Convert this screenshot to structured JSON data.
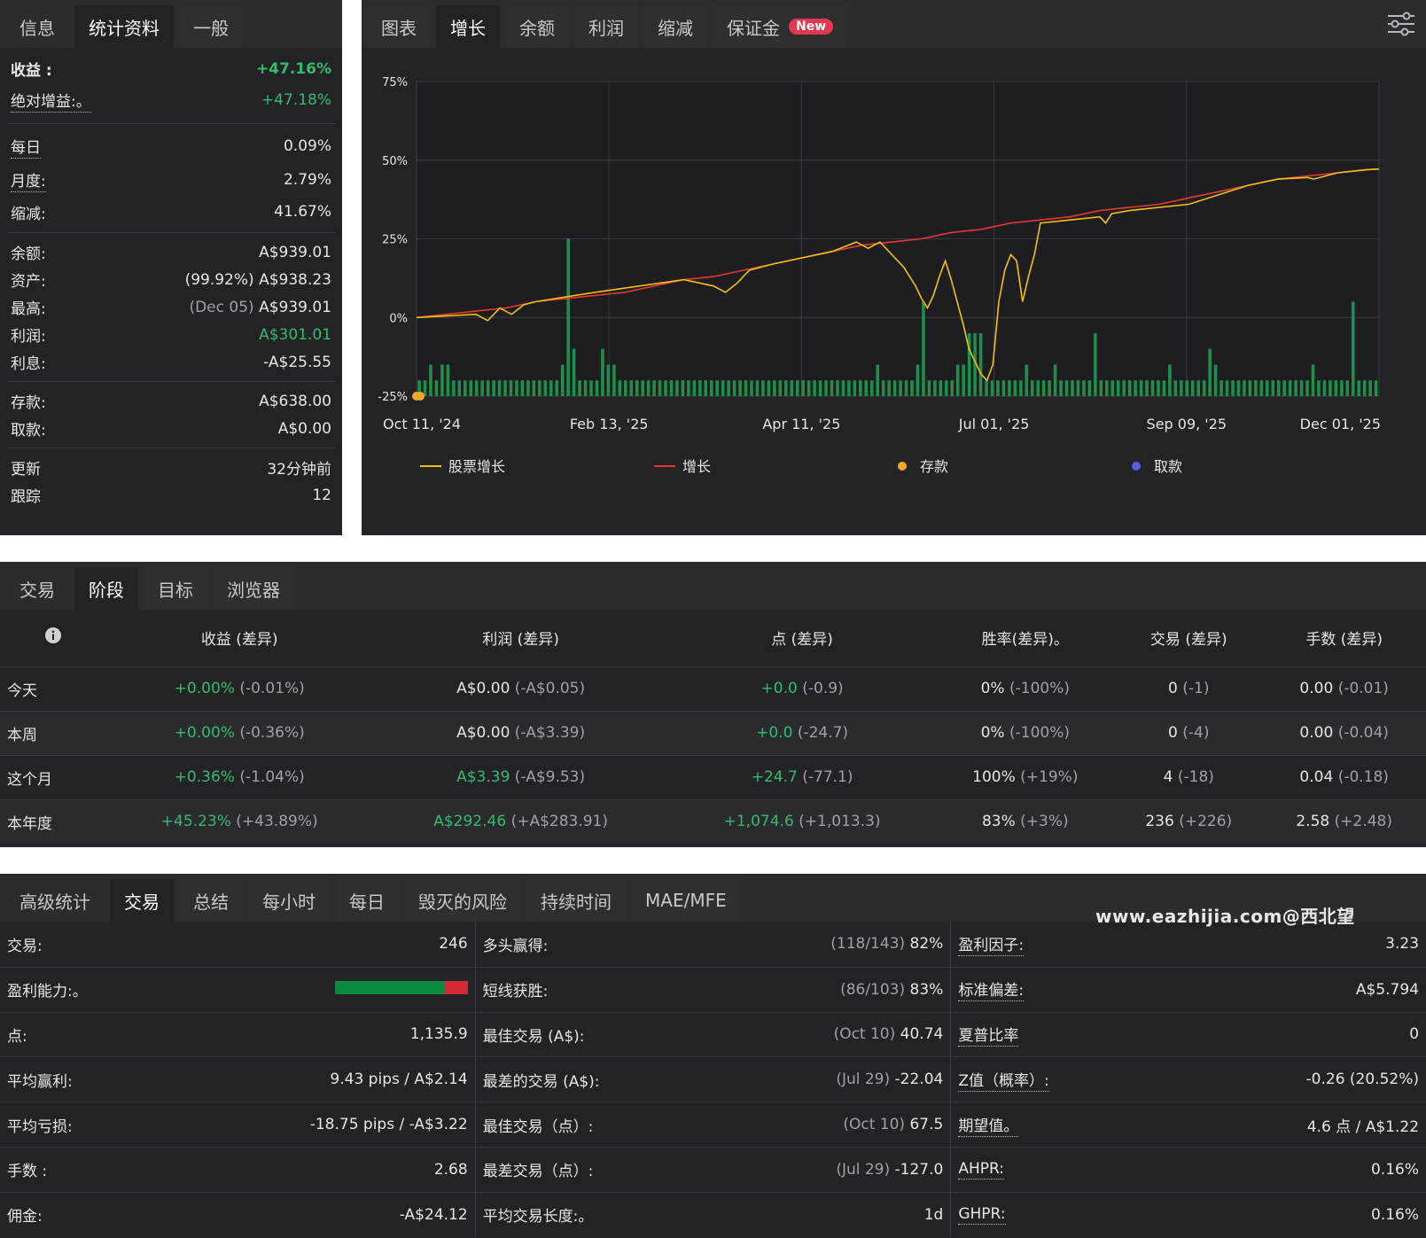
{
  "stats_panel": {
    "tabs": [
      "信息",
      "统计资料",
      "一般"
    ],
    "gain": {
      "label": "收益 :",
      "value": "+47.16%"
    },
    "abs_gain": {
      "label": "绝对增益:。",
      "value": "+47.18%"
    },
    "daily": {
      "label": "每日",
      "value": "0.09%"
    },
    "monthly": {
      "label": "月度:",
      "value": "2.79%"
    },
    "drawdown": {
      "label": "缩减:",
      "value": "41.67%"
    },
    "balance": {
      "label": "余额:",
      "value": "A$939.01"
    },
    "equity": {
      "label": "资产:",
      "note": "(99.92%)",
      "value": "A$938.23"
    },
    "highest": {
      "label": "最高:",
      "note": "(Dec 05)",
      "value": "A$939.01"
    },
    "profit": {
      "label": "利润:",
      "value": "A$301.01"
    },
    "interest": {
      "label": "利息:",
      "value": "-A$25.55"
    },
    "deposits": {
      "label": "存款:",
      "value": "A$638.00"
    },
    "withdrawals": {
      "label": "取款:",
      "value": "A$0.00"
    },
    "updated": {
      "label": "更新",
      "value": "32分钟前"
    },
    "tracking": {
      "label": "跟踪",
      "value": "12"
    }
  },
  "chart_panel": {
    "tabs": [
      "图表",
      "增长",
      "余额",
      "利润",
      "缩减",
      "保证金"
    ],
    "new_badge": "New",
    "settings_icon": "sliders-icon"
  },
  "chart_data": {
    "type": "line",
    "x_tick_labels": [
      "Oct 11, '24",
      "Feb 13, '25",
      "Apr 11, '25",
      "Jul 01, '25",
      "Sep 09, '25",
      "Dec 01, '25"
    ],
    "y_tick_labels": [
      "75%",
      "50%",
      "25%",
      "0%",
      "-25%"
    ],
    "ylim": [
      -25,
      75
    ],
    "colors": {
      "equity_growth": "#f2c10e",
      "growth": "#e8382f",
      "deposit": "#f5a623",
      "withdrawal": "#5b5ce6",
      "bars": "#1f8f4a"
    },
    "legend": [
      {
        "name": "股票增长",
        "kind": "line",
        "color": "#f2c10e"
      },
      {
        "name": "增长",
        "kind": "line",
        "color": "#e8382f"
      },
      {
        "name": "存款",
        "kind": "dot",
        "color": "#f5a623"
      },
      {
        "name": "取款",
        "kind": "dot",
        "color": "#5b5ce6"
      }
    ],
    "series": [
      {
        "name": "增长",
        "points": [
          [
            0,
            0
          ],
          [
            5,
            1
          ],
          [
            10,
            2
          ],
          [
            15,
            3
          ],
          [
            20,
            5
          ],
          [
            25,
            6
          ],
          [
            30,
            7
          ],
          [
            35,
            8
          ],
          [
            40,
            10
          ],
          [
            45,
            12
          ],
          [
            50,
            13
          ],
          [
            55,
            15
          ],
          [
            60,
            17
          ],
          [
            65,
            19
          ],
          [
            70,
            21
          ],
          [
            75,
            23
          ],
          [
            80,
            24
          ],
          [
            85,
            25
          ],
          [
            90,
            27
          ],
          [
            95,
            28
          ],
          [
            100,
            30
          ],
          [
            105,
            31
          ],
          [
            110,
            32
          ],
          [
            115,
            34
          ],
          [
            120,
            35
          ],
          [
            125,
            36
          ],
          [
            130,
            38
          ],
          [
            135,
            40
          ],
          [
            140,
            42
          ],
          [
            145,
            44
          ],
          [
            150,
            45
          ],
          [
            155,
            46
          ],
          [
            160,
            47
          ],
          [
            162,
            47.2
          ]
        ]
      },
      {
        "name": "股票增长",
        "points": [
          [
            0,
            0
          ],
          [
            10,
            1
          ],
          [
            12,
            -1
          ],
          [
            14,
            3
          ],
          [
            16,
            1
          ],
          [
            18,
            4
          ],
          [
            20,
            5
          ],
          [
            30,
            8
          ],
          [
            45,
            12
          ],
          [
            50,
            10
          ],
          [
            52,
            8
          ],
          [
            54,
            11
          ],
          [
            56,
            15
          ],
          [
            60,
            17
          ],
          [
            70,
            21
          ],
          [
            74,
            24
          ],
          [
            76,
            22
          ],
          [
            78,
            24
          ],
          [
            80,
            20
          ],
          [
            82,
            16
          ],
          [
            84,
            10
          ],
          [
            85,
            6
          ],
          [
            86,
            3
          ],
          [
            87,
            7
          ],
          [
            88,
            13
          ],
          [
            89,
            18
          ],
          [
            90,
            12
          ],
          [
            91,
            5
          ],
          [
            92,
            -2
          ],
          [
            93,
            -10
          ],
          [
            94,
            -14
          ],
          [
            95,
            -18
          ],
          [
            96,
            -20
          ],
          [
            97,
            -15
          ],
          [
            98,
            5
          ],
          [
            99,
            15
          ],
          [
            100,
            20
          ],
          [
            101,
            18
          ],
          [
            102,
            5
          ],
          [
            103,
            13
          ],
          [
            104,
            20
          ],
          [
            105,
            30
          ],
          [
            110,
            31
          ],
          [
            115,
            32
          ],
          [
            116,
            30
          ],
          [
            117,
            33
          ],
          [
            120,
            34
          ],
          [
            130,
            36
          ],
          [
            140,
            42
          ],
          [
            145,
            44
          ],
          [
            150,
            44.5
          ],
          [
            151,
            44
          ],
          [
            155,
            46
          ],
          [
            160,
            47
          ],
          [
            162,
            47.2
          ]
        ]
      }
    ],
    "bar_values": [
      5,
      5,
      10,
      5,
      10,
      10,
      5,
      5,
      5,
      5,
      5,
      5,
      5,
      5,
      5,
      5,
      5,
      5,
      5,
      5,
      5,
      5,
      5,
      5,
      5,
      10,
      50,
      15,
      5,
      5,
      5,
      5,
      15,
      10,
      10,
      5,
      5,
      5,
      5,
      5,
      5,
      5,
      5,
      5,
      5,
      5,
      5,
      5,
      5,
      5,
      5,
      5,
      5,
      5,
      5,
      5,
      5,
      5,
      5,
      5,
      5,
      5,
      5,
      5,
      5,
      5,
      5,
      5,
      5,
      5,
      5,
      5,
      5,
      5,
      5,
      5,
      5,
      5,
      5,
      5,
      10,
      5,
      5,
      5,
      5,
      5,
      5,
      10,
      30,
      5,
      5,
      5,
      5,
      5,
      10,
      10,
      20,
      20,
      20,
      5,
      5,
      5,
      5,
      5,
      5,
      5,
      10,
      5,
      5,
      5,
      5,
      10,
      5,
      5,
      5,
      5,
      5,
      5,
      20,
      5,
      5,
      5,
      5,
      5,
      5,
      5,
      5,
      5,
      5,
      5,
      5,
      10,
      5,
      5,
      5,
      5,
      5,
      5,
      15,
      10,
      5,
      5,
      5,
      5,
      5,
      5,
      5,
      5,
      5,
      5,
      5,
      5,
      5,
      5,
      5,
      5,
      10,
      5,
      5,
      5,
      5,
      5,
      5,
      30,
      5,
      5,
      5,
      5
    ],
    "deposit_x": [
      0,
      0.6
    ]
  },
  "period_panel": {
    "tabs": [
      "交易",
      "阶段",
      "目标",
      "浏览器"
    ],
    "headers": [
      "收益 (差异)",
      "利润 (差异)",
      "点 (差异)",
      "胜率(差异)。",
      "交易 (差异)",
      "手数 (差异)"
    ],
    "rows": [
      {
        "label": "今天",
        "cells": [
          [
            "+0.00%",
            "(-0.01%)"
          ],
          [
            "A$0.00",
            "(-A$0.05)"
          ],
          [
            "+0.0",
            "(-0.9)"
          ],
          [
            "0%",
            "(-100%)"
          ],
          [
            "0",
            "(-1)"
          ],
          [
            "0.00",
            "(-0.01)"
          ]
        ]
      },
      {
        "label": "本周",
        "cells": [
          [
            "+0.00%",
            "(-0.36%)"
          ],
          [
            "A$0.00",
            "(-A$3.39)"
          ],
          [
            "+0.0",
            "(-24.7)"
          ],
          [
            "0%",
            "(-100%)"
          ],
          [
            "0",
            "(-4)"
          ],
          [
            "0.00",
            "(-0.04)"
          ]
        ]
      },
      {
        "label": "这个月",
        "cells": [
          [
            "+0.36%",
            "(-1.04%)"
          ],
          [
            "A$3.39",
            "(-A$9.53)"
          ],
          [
            "+24.7",
            "(-77.1)"
          ],
          [
            "100%",
            "(+19%)"
          ],
          [
            "4",
            "(-18)"
          ],
          [
            "0.04",
            "(-0.18)"
          ]
        ]
      },
      {
        "label": "本年度",
        "cells": [
          [
            "+45.23%",
            "(+43.89%)"
          ],
          [
            "A$292.46",
            "(+A$283.91)"
          ],
          [
            "+1,074.6",
            "(+1,013.3)"
          ],
          [
            "83%",
            "(+3%)"
          ],
          [
            "236",
            "(+226)"
          ],
          [
            "2.58",
            "(+2.48)"
          ]
        ]
      }
    ]
  },
  "advanced_panel": {
    "tabs": [
      "高级统计",
      "交易",
      "总结",
      "每小时",
      "每日",
      "毁灭的风险",
      "持续时间",
      "MAE/MFE"
    ],
    "watermark": "www.eazhijia.com@西北望",
    "profitability_win_pct": 82,
    "col1": [
      {
        "label": "交易:",
        "value": "246"
      },
      {
        "label": "盈利能力:。",
        "value": ""
      },
      {
        "label": "点:",
        "value": "1,135.9"
      },
      {
        "label": "平均赢利:",
        "value": "9.43 pips / A$2.14"
      },
      {
        "label": "平均亏损:",
        "value": "-18.75 pips / -A$3.22"
      },
      {
        "label": "手数 :",
        "value": "2.68"
      },
      {
        "label": "佣金:",
        "value": "-A$24.12"
      }
    ],
    "col2": [
      {
        "label": "多头赢得:",
        "note": "(118/143)",
        "value": "82%"
      },
      {
        "label": "短线获胜:",
        "note": "(86/103)",
        "value": "83%"
      },
      {
        "label": "最佳交易 (A$):",
        "note": "(Oct 10)",
        "value": "40.74"
      },
      {
        "label": "最差的交易 (A$):",
        "note": "(Jul 29)",
        "value": "-22.04"
      },
      {
        "label": "最佳交易（点）:",
        "note": "(Oct 10)",
        "value": "67.5"
      },
      {
        "label": "最差交易（点）:",
        "note": "(Jul 29)",
        "value": "-127.0"
      },
      {
        "label": "平均交易长度:。",
        "note": "",
        "value": "1d"
      }
    ],
    "col3": [
      {
        "label": "盈利因子:",
        "value": "3.23"
      },
      {
        "label": "标准偏差:",
        "value": "A$5.794"
      },
      {
        "label": "夏普比率",
        "value": "0"
      },
      {
        "label": "Z值（概率）:",
        "value": "-0.26 (20.52%)"
      },
      {
        "label": "期望值。",
        "value": "4.6 点 / A$1.22"
      },
      {
        "label": "AHPR:",
        "value": "0.16%"
      },
      {
        "label": "GHPR:",
        "value": "0.16%"
      }
    ]
  }
}
